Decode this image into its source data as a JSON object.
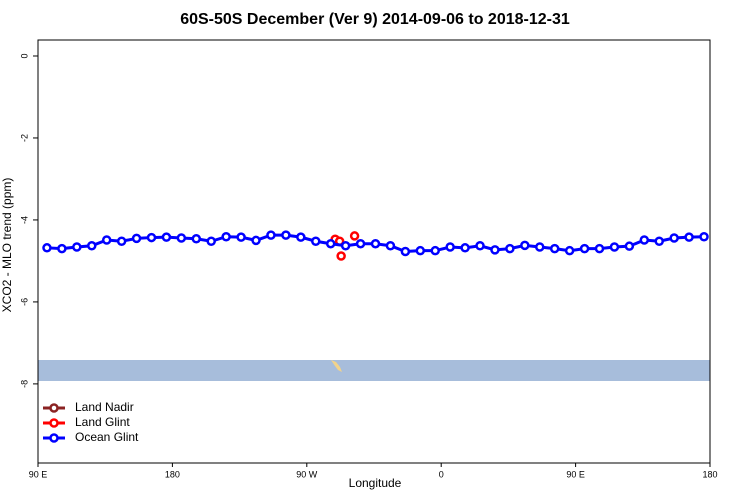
{
  "chart_data": {
    "type": "line",
    "title": "60S-50S December (Ver 9)   2014-09-06 to 2018-12-31",
    "x_label": "Longitude",
    "y_label": "XCO2 - MLO trend (ppm)",
    "xlim": [
      90,
      540
    ],
    "xticks": [
      {
        "value": 90,
        "label": "90 E"
      },
      180,
      {
        "value": 270,
        "label": "90 W"
      },
      {
        "value": 360,
        "label": "0"
      },
      {
        "value": 450,
        "label": "90 E"
      },
      {
        "value": 540,
        "label": "180"
      }
    ],
    "ylim": [
      -9.93,
      0.39
    ],
    "yticks": [
      0,
      -2,
      -4,
      -6,
      -8
    ],
    "legend": "bottom-left",
    "series": [
      {
        "name": "Land Nadir",
        "color": "#8b2323",
        "mode": "lines+markers",
        "x": [],
        "values": []
      },
      {
        "name": "Land Glint",
        "color": "#ff0000",
        "mode": "markers",
        "x": [
          289,
          292,
          293,
          302
        ],
        "values": [
          -4.47,
          -4.52,
          -4.88,
          -4.39
        ]
      },
      {
        "name": "Ocean Glint",
        "color": "#0000ff",
        "mode": "lines+markers",
        "x": [
          96,
          106,
          116,
          126,
          136,
          146,
          156,
          166,
          176,
          186,
          196,
          206,
          216,
          226,
          236,
          246,
          256,
          266,
          276,
          286,
          296,
          306,
          316,
          326,
          336,
          346,
          356,
          366,
          376,
          386,
          396,
          406,
          416,
          426,
          436,
          446,
          456,
          466,
          476,
          486,
          496,
          506,
          516,
          526,
          536
        ],
        "values": [
          -4.68,
          -4.7,
          -4.66,
          -4.63,
          -4.49,
          -4.52,
          -4.45,
          -4.43,
          -4.42,
          -4.44,
          -4.46,
          -4.52,
          -4.41,
          -4.42,
          -4.5,
          -4.37,
          -4.37,
          -4.42,
          -4.52,
          -4.58,
          -4.63,
          -4.58,
          -4.58,
          -4.63,
          -4.77,
          -4.75,
          -4.75,
          -4.66,
          -4.68,
          -4.63,
          -4.73,
          -4.7,
          -4.62,
          -4.66,
          -4.7,
          -4.75,
          -4.7,
          -4.7,
          -4.66,
          -4.64,
          -4.49,
          -4.52,
          -4.44,
          -4.42,
          -4.41
        ]
      }
    ]
  }
}
